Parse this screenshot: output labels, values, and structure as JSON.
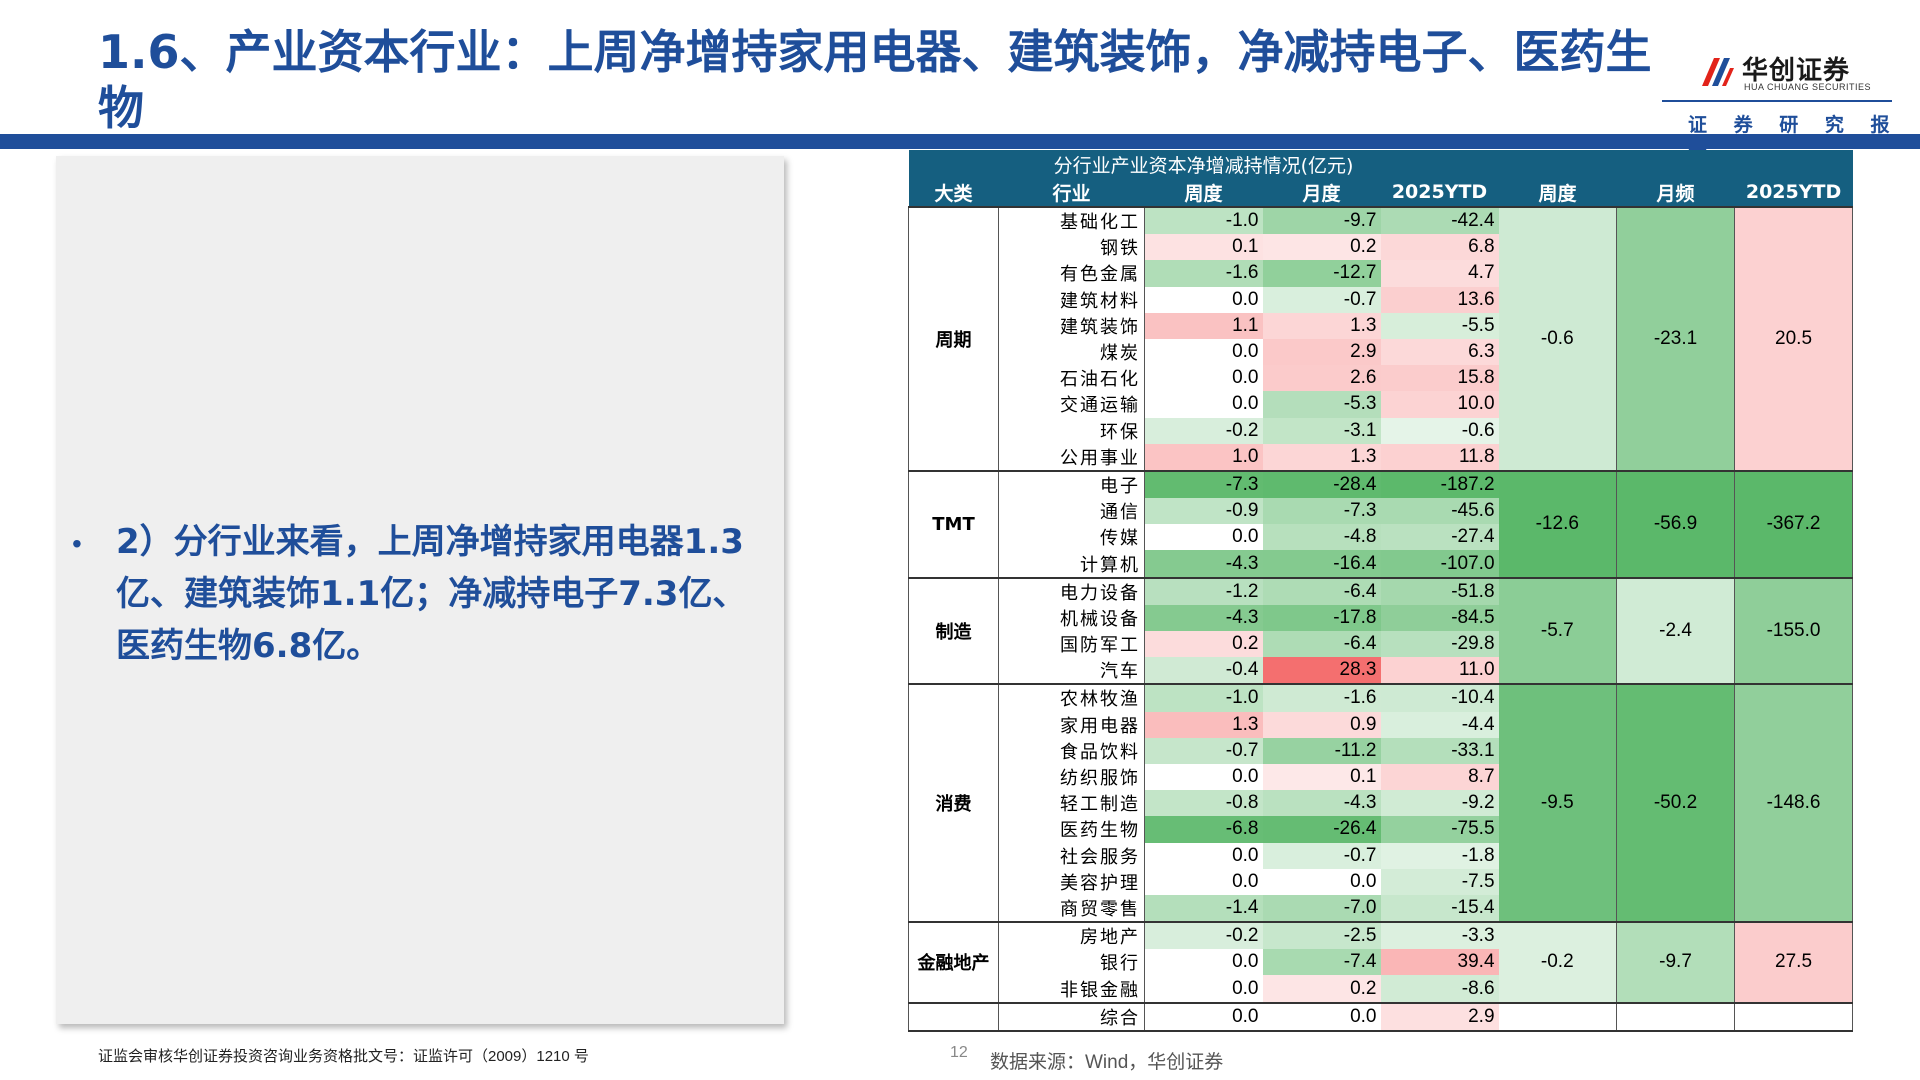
{
  "title": "1.6、产业资本行业：上周净增持家用电器、建筑装饰，净减持电子、医药生物",
  "logo": {
    "name_cn": "华创证券",
    "name_en": "HUA CHUANG SECURITIES",
    "tagline": "证 券 研 究 报 告"
  },
  "bullet": "2）分行业来看，上周净增持家用电器1.3亿、建筑装饰1.1亿；净减持电子7.3亿、医药生物6.8亿。",
  "footer": {
    "license": "证监会审核华创证券投资咨询业务资格批文号：证监许可（2009）1210 号",
    "page": "12",
    "source": "数据来源：Wind，华创证券"
  },
  "table": {
    "caption": "分行业产业资本净增减持情况(亿元)",
    "headers": [
      "大类",
      "行业",
      "周度",
      "月度",
      "2025YTD",
      "周度",
      "月频",
      "2025YTD"
    ],
    "groups": [
      {
        "category": "周期",
        "summary": [
          "-0.6",
          "-23.1",
          "20.5"
        ],
        "rows": [
          {
            "industry": "基础化工",
            "week": "-1.0",
            "month": "-9.7",
            "ytd": "-42.4"
          },
          {
            "industry": "钢铁",
            "week": "0.1",
            "month": "0.2",
            "ytd": "6.8"
          },
          {
            "industry": "有色金属",
            "week": "-1.6",
            "month": "-12.7",
            "ytd": "4.7"
          },
          {
            "industry": "建筑材料",
            "week": "0.0",
            "month": "-0.7",
            "ytd": "13.6"
          },
          {
            "industry": "建筑装饰",
            "week": "1.1",
            "month": "1.3",
            "ytd": "-5.5"
          },
          {
            "industry": "煤炭",
            "week": "0.0",
            "month": "2.9",
            "ytd": "6.3"
          },
          {
            "industry": "石油石化",
            "week": "0.0",
            "month": "2.6",
            "ytd": "15.8"
          },
          {
            "industry": "交通运输",
            "week": "0.0",
            "month": "-5.3",
            "ytd": "10.0"
          },
          {
            "industry": "环保",
            "week": "-0.2",
            "month": "-3.1",
            "ytd": "-0.6"
          },
          {
            "industry": "公用事业",
            "week": "1.0",
            "month": "1.3",
            "ytd": "11.8"
          }
        ]
      },
      {
        "category": "TMT",
        "summary": [
          "-12.6",
          "-56.9",
          "-367.2"
        ],
        "rows": [
          {
            "industry": "电子",
            "week": "-7.3",
            "month": "-28.4",
            "ytd": "-187.2"
          },
          {
            "industry": "通信",
            "week": "-0.9",
            "month": "-7.3",
            "ytd": "-45.6"
          },
          {
            "industry": "传媒",
            "week": "0.0",
            "month": "-4.8",
            "ytd": "-27.4"
          },
          {
            "industry": "计算机",
            "week": "-4.3",
            "month": "-16.4",
            "ytd": "-107.0"
          }
        ]
      },
      {
        "category": "制造",
        "summary": [
          "-5.7",
          "-2.4",
          "-155.0"
        ],
        "rows": [
          {
            "industry": "电力设备",
            "week": "-1.2",
            "month": "-6.4",
            "ytd": "-51.8"
          },
          {
            "industry": "机械设备",
            "week": "-4.3",
            "month": "-17.8",
            "ytd": "-84.5"
          },
          {
            "industry": "国防军工",
            "week": "0.2",
            "month": "-6.4",
            "ytd": "-29.8"
          },
          {
            "industry": "汽车",
            "week": "-0.4",
            "month": "28.3",
            "ytd": "11.0"
          }
        ]
      },
      {
        "category": "消费",
        "summary": [
          "-9.5",
          "-50.2",
          "-148.6"
        ],
        "rows": [
          {
            "industry": "农林牧渔",
            "week": "-1.0",
            "month": "-1.6",
            "ytd": "-10.4"
          },
          {
            "industry": "家用电器",
            "week": "1.3",
            "month": "0.9",
            "ytd": "-4.4"
          },
          {
            "industry": "食品饮料",
            "week": "-0.7",
            "month": "-11.2",
            "ytd": "-33.1"
          },
          {
            "industry": "纺织服饰",
            "week": "0.0",
            "month": "0.1",
            "ytd": "8.7"
          },
          {
            "industry": "轻工制造",
            "week": "-0.8",
            "month": "-4.3",
            "ytd": "-9.2"
          },
          {
            "industry": "医药生物",
            "week": "-6.8",
            "month": "-26.4",
            "ytd": "-75.5"
          },
          {
            "industry": "社会服务",
            "week": "0.0",
            "month": "-0.7",
            "ytd": "-1.8"
          },
          {
            "industry": "美容护理",
            "week": "0.0",
            "month": "0.0",
            "ytd": "-7.5"
          },
          {
            "industry": "商贸零售",
            "week": "-1.4",
            "month": "-7.0",
            "ytd": "-15.4"
          }
        ]
      },
      {
        "category": "金融地产",
        "summary": [
          "-0.2",
          "-9.7",
          "27.5"
        ],
        "rows": [
          {
            "industry": "房地产",
            "week": "-0.2",
            "month": "-2.5",
            "ytd": "-3.3"
          },
          {
            "industry": "银行",
            "week": "0.0",
            "month": "-7.4",
            "ytd": "39.4"
          },
          {
            "industry": "非银金融",
            "week": "0.0",
            "month": "0.2",
            "ytd": "-8.6"
          }
        ]
      },
      {
        "category": "",
        "summary": [
          "",
          "",
          ""
        ],
        "rows": [
          {
            "industry": "综合",
            "week": "0.0",
            "month": "0.0",
            "ytd": "2.9"
          }
        ]
      }
    ]
  },
  "colors": {
    "brand_blue": "#1f4e9a",
    "header_teal": "#155f80",
    "positive": "#f46b6b",
    "negative": "#5bb86a",
    "logo_red": "#e2231a"
  }
}
